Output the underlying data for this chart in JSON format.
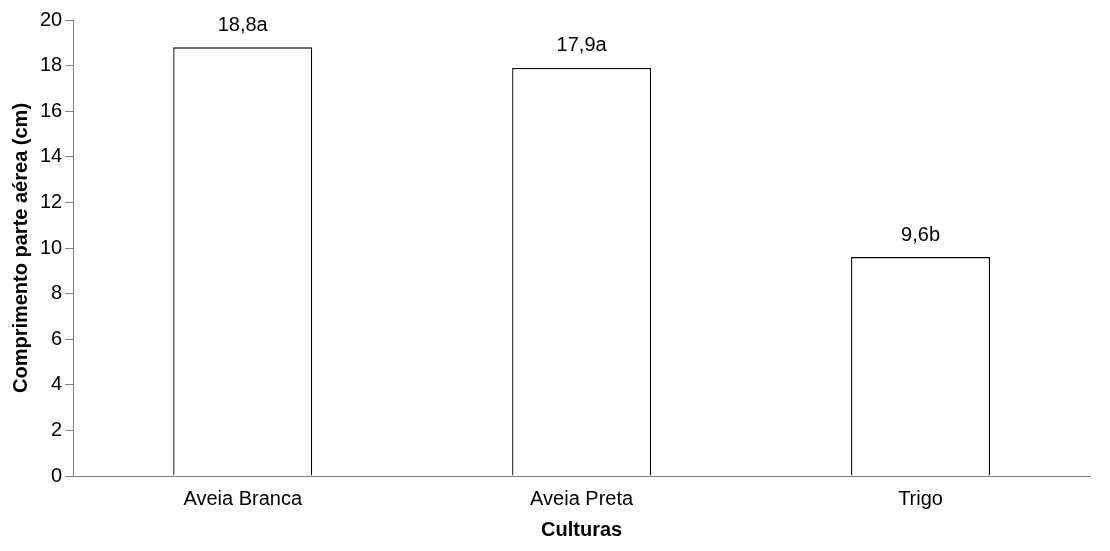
{
  "chart_data": {
    "type": "bar",
    "xlabel": "Culturas",
    "ylabel": "Comprimento parte aérea (cm)",
    "categories": [
      "Aveia Branca",
      "Aveia Preta",
      "Trigo"
    ],
    "values": [
      18.8,
      17.9,
      9.6
    ],
    "value_labels": [
      "18,8a",
      "17,9a",
      "9,6b"
    ],
    "color": "#ffffff",
    "ylim": [
      0,
      20
    ],
    "yticks": [
      0,
      2,
      4,
      6,
      8,
      10,
      12,
      14,
      16,
      18,
      20
    ],
    "grid": false,
    "legend": false
  }
}
